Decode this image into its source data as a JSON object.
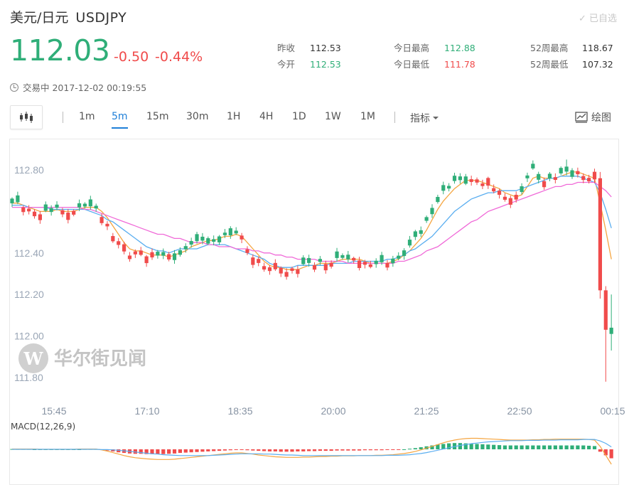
{
  "header": {
    "name": "美元/日元",
    "symbol": "USDJPY",
    "favorite": "✓ 已自选",
    "price": "112.03",
    "change": "-0.50",
    "change_pct": "-0.44%",
    "status": "交易中 2017-12-02 00:19:55"
  },
  "stats": {
    "prev_close_label": "昨收",
    "prev_close": "112.53",
    "open_label": "今开",
    "open": "112.53",
    "high_label": "今日最高",
    "high": "112.88",
    "low_label": "今日最低",
    "low": "111.78",
    "w52_high_label": "52周最高",
    "w52_high": "118.67",
    "w52_low_label": "52周最低",
    "w52_low": "107.32"
  },
  "toolbar": {
    "timeframes": [
      "1m",
      "5m",
      "15m",
      "30m",
      "1H",
      "4H",
      "1D",
      "1W",
      "1M"
    ],
    "active_timeframe": "5m",
    "indicator_label": "指标",
    "draw_label": "绘图"
  },
  "watermark": {
    "text": "华尔街见闻"
  },
  "colors": {
    "up": "#2fae78",
    "down": "#f04b4b",
    "accent": "#1e7fd8"
  },
  "chart_data": {
    "type": "candlestick",
    "y_ticks": [
      "112.80",
      "112.40",
      "112.20",
      "112.00",
      "111.80"
    ],
    "x_ticks": [
      "15:45",
      "17:10",
      "18:35",
      "20:00",
      "21:25",
      "22:50",
      "00:15"
    ],
    "ylim": [
      111.75,
      112.9
    ],
    "candle_count": 108,
    "ma_series": [
      {
        "color": "#f5a540",
        "values": [
          112.64,
          112.64,
          112.63,
          112.62,
          112.61,
          112.6,
          112.6,
          112.6,
          112.61,
          112.6,
          112.6,
          112.6,
          112.61,
          112.62,
          112.62,
          112.62,
          112.6,
          112.57,
          112.53,
          112.49,
          112.45,
          112.42,
          112.41,
          112.41,
          112.4,
          112.39,
          112.39,
          112.39,
          112.38,
          112.39,
          112.4,
          112.41,
          112.43,
          112.44,
          112.45,
          112.46,
          112.46,
          112.47,
          112.48,
          112.48,
          112.49,
          112.48,
          112.45,
          112.42,
          112.39,
          112.36,
          112.34,
          112.33,
          112.33,
          112.32,
          112.32,
          112.32,
          112.33,
          112.34,
          112.34,
          112.35,
          112.35,
          112.35,
          112.36,
          112.37,
          112.37,
          112.37,
          112.37,
          112.36,
          112.35,
          112.35,
          112.35,
          112.35,
          112.36,
          112.37,
          112.39,
          112.41,
          112.44,
          112.47,
          112.51,
          112.56,
          112.61,
          112.65,
          112.68,
          112.71,
          112.73,
          112.75,
          112.75,
          112.75,
          112.74,
          112.73,
          112.72,
          112.71,
          112.69,
          112.68,
          112.67,
          112.68,
          112.72,
          112.76,
          112.77,
          112.76,
          112.76,
          112.76,
          112.77,
          112.78,
          112.79,
          112.79,
          112.78,
          112.77,
          112.76,
          112.64,
          112.51,
          112.37
        ]
      },
      {
        "color": "#5aaef0",
        "values": [
          112.63,
          112.63,
          112.63,
          112.62,
          112.62,
          112.62,
          112.62,
          112.61,
          112.61,
          112.61,
          112.61,
          112.61,
          112.61,
          112.61,
          112.6,
          112.59,
          112.58,
          112.56,
          112.55,
          112.53,
          112.51,
          112.49,
          112.47,
          112.45,
          112.43,
          112.42,
          112.41,
          112.41,
          112.4,
          112.41,
          112.42,
          112.42,
          112.42,
          112.42,
          112.43,
          112.44,
          112.44,
          112.44,
          112.44,
          112.43,
          112.42,
          112.41,
          112.4,
          112.39,
          112.38,
          112.37,
          112.35,
          112.34,
          112.33,
          112.33,
          112.33,
          112.34,
          112.34,
          112.34,
          112.34,
          112.34,
          112.34,
          112.35,
          112.35,
          112.35,
          112.35,
          112.36,
          112.36,
          112.36,
          112.36,
          112.36,
          112.36,
          112.37,
          112.37,
          112.38,
          112.39,
          112.41,
          112.42,
          112.44,
          112.46,
          112.48,
          112.51,
          112.54,
          112.57,
          112.6,
          112.62,
          112.64,
          112.66,
          112.67,
          112.68,
          112.69,
          112.69,
          112.7,
          112.7,
          112.7,
          112.7,
          112.71,
          112.72,
          112.73,
          112.74,
          112.75,
          112.76,
          112.76,
          112.77,
          112.77,
          112.77,
          112.77,
          112.76,
          112.75,
          112.74,
          112.69,
          112.61,
          112.52
        ]
      },
      {
        "color": "#f06ad8",
        "values": [
          112.62,
          112.62,
          112.62,
          112.62,
          112.62,
          112.62,
          112.62,
          112.62,
          112.62,
          112.62,
          112.62,
          112.62,
          112.62,
          112.61,
          112.61,
          112.6,
          112.59,
          112.58,
          112.57,
          112.56,
          112.55,
          112.54,
          112.53,
          112.52,
          112.51,
          112.5,
          112.49,
          112.49,
          112.48,
          112.47,
          112.47,
          112.46,
          112.45,
          112.45,
          112.45,
          112.44,
          112.44,
          112.43,
          112.43,
          112.43,
          112.42,
          112.42,
          112.42,
          112.41,
          112.41,
          112.4,
          112.4,
          112.39,
          112.39,
          112.38,
          112.38,
          112.37,
          112.37,
          112.37,
          112.37,
          112.36,
          112.36,
          112.36,
          112.36,
          112.36,
          112.35,
          112.35,
          112.35,
          112.35,
          112.35,
          112.35,
          112.35,
          112.35,
          112.35,
          112.36,
          112.36,
          112.37,
          112.38,
          112.39,
          112.41,
          112.42,
          112.43,
          112.45,
          112.47,
          112.49,
          112.51,
          112.53,
          112.55,
          112.56,
          112.58,
          112.6,
          112.61,
          112.62,
          112.63,
          112.64,
          112.65,
          112.66,
          112.67,
          112.68,
          112.69,
          112.7,
          112.71,
          112.72,
          112.72,
          112.73,
          112.73,
          112.74,
          112.74,
          112.74,
          112.74,
          112.72,
          112.7,
          112.67
        ]
      }
    ],
    "macd": {
      "label": "MACD(12,26,9)",
      "histogram": [
        0.001,
        0.001,
        0.001,
        0.001,
        0.0,
        0.0,
        0.0,
        0.0,
        0.0,
        0.0,
        0.0,
        0.0,
        0.0,
        0.001,
        0.001,
        0.001,
        -0.002,
        -0.004,
        -0.007,
        -0.01,
        -0.012,
        -0.014,
        -0.015,
        -0.015,
        -0.016,
        -0.016,
        -0.016,
        -0.016,
        -0.015,
        -0.014,
        -0.012,
        -0.011,
        -0.01,
        -0.009,
        -0.008,
        -0.007,
        -0.006,
        -0.005,
        -0.004,
        -0.003,
        -0.002,
        -0.002,
        -0.003,
        -0.004,
        -0.005,
        -0.006,
        -0.007,
        -0.007,
        -0.008,
        -0.008,
        -0.008,
        -0.007,
        -0.007,
        -0.006,
        -0.006,
        -0.005,
        -0.005,
        -0.005,
        -0.004,
        -0.004,
        -0.004,
        -0.004,
        -0.004,
        -0.003,
        -0.003,
        -0.003,
        -0.003,
        -0.002,
        -0.002,
        -0.001,
        0.0,
        0.002,
        0.004,
        0.007,
        0.01,
        0.013,
        0.016,
        0.018,
        0.02,
        0.021,
        0.021,
        0.02,
        0.019,
        0.018,
        0.017,
        0.016,
        0.015,
        0.014,
        0.013,
        0.013,
        0.013,
        0.013,
        0.013,
        0.013,
        0.013,
        0.013,
        0.013,
        0.013,
        0.013,
        0.013,
        0.013,
        0.013,
        0.013,
        0.012,
        0.011,
        -0.008,
        -0.02,
        -0.03
      ],
      "dif": [
        0.001,
        0.001,
        0.001,
        0.001,
        0.001,
        0.0,
        0.0,
        0.0,
        0.0,
        0.0,
        0.0,
        0.0,
        0.001,
        0.001,
        0.001,
        0.001,
        -0.002,
        -0.006,
        -0.011,
        -0.016,
        -0.021,
        -0.025,
        -0.028,
        -0.03,
        -0.032,
        -0.033,
        -0.034,
        -0.034,
        -0.034,
        -0.033,
        -0.031,
        -0.029,
        -0.027,
        -0.025,
        -0.023,
        -0.021,
        -0.019,
        -0.017,
        -0.015,
        -0.013,
        -0.012,
        -0.012,
        -0.014,
        -0.016,
        -0.019,
        -0.021,
        -0.023,
        -0.025,
        -0.026,
        -0.027,
        -0.027,
        -0.027,
        -0.026,
        -0.026,
        -0.025,
        -0.024,
        -0.024,
        -0.023,
        -0.023,
        -0.022,
        -0.022,
        -0.022,
        -0.021,
        -0.021,
        -0.021,
        -0.02,
        -0.02,
        -0.019,
        -0.018,
        -0.016,
        -0.014,
        -0.011,
        -0.007,
        -0.002,
        0.004,
        0.01,
        0.016,
        0.022,
        0.027,
        0.031,
        0.034,
        0.036,
        0.037,
        0.037,
        0.036,
        0.035,
        0.034,
        0.033,
        0.032,
        0.031,
        0.031,
        0.031,
        0.031,
        0.032,
        0.032,
        0.033,
        0.033,
        0.034,
        0.034,
        0.034,
        0.034,
        0.034,
        0.034,
        0.033,
        0.031,
        0.01,
        -0.02,
        -0.05
      ],
      "dea": [
        0.0,
        0.0,
        0.0,
        0.0,
        0.0,
        0.0,
        0.0,
        0.0,
        0.0,
        0.0,
        0.0,
        0.0,
        0.0,
        0.0,
        0.0,
        0.0,
        -0.001,
        -0.001,
        -0.002,
        -0.003,
        -0.005,
        -0.007,
        -0.009,
        -0.011,
        -0.013,
        -0.015,
        -0.016,
        -0.018,
        -0.019,
        -0.02,
        -0.021,
        -0.021,
        -0.021,
        -0.021,
        -0.021,
        -0.021,
        -0.02,
        -0.019,
        -0.018,
        -0.017,
        -0.016,
        -0.015,
        -0.015,
        -0.015,
        -0.015,
        -0.016,
        -0.016,
        -0.017,
        -0.018,
        -0.019,
        -0.019,
        -0.02,
        -0.021,
        -0.021,
        -0.021,
        -0.021,
        -0.021,
        -0.021,
        -0.021,
        -0.021,
        -0.021,
        -0.021,
        -0.021,
        -0.021,
        -0.021,
        -0.021,
        -0.021,
        -0.02,
        -0.02,
        -0.02,
        -0.019,
        -0.018,
        -0.016,
        -0.014,
        -0.011,
        -0.007,
        -0.003,
        0.001,
        0.005,
        0.009,
        0.013,
        0.016,
        0.019,
        0.021,
        0.023,
        0.025,
        0.026,
        0.027,
        0.028,
        0.029,
        0.029,
        0.029,
        0.03,
        0.03,
        0.03,
        0.031,
        0.031,
        0.031,
        0.032,
        0.032,
        0.032,
        0.032,
        0.033,
        0.033,
        0.033,
        0.028,
        0.02,
        0.008
      ]
    }
  }
}
